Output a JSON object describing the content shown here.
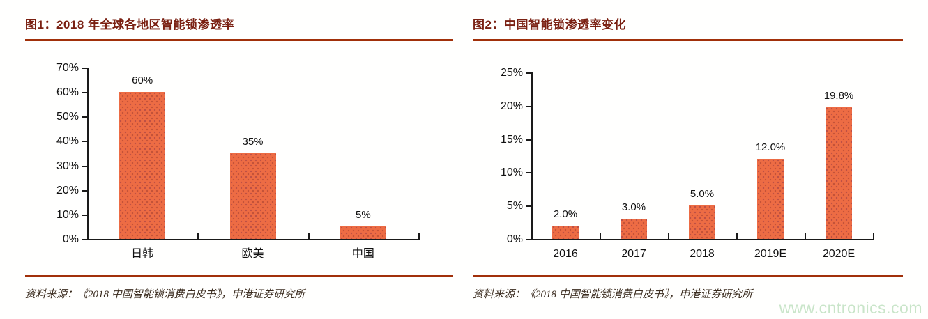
{
  "figures": [
    {
      "source": "资料来源：《2018 中国智能锁消费白皮书》，申港证券研究所"
    },
    {
      "source": "资料来源：《2018 中国智能锁消费白皮书》，申港证券研究所"
    }
  ],
  "watermark": {
    "text": "www.cntronics.com",
    "color": "#c9e5c9"
  },
  "accent_colors": {
    "title": "#7a2012",
    "rule": "#a1300a",
    "bar": "#ed6c44"
  },
  "chart_data": [
    {
      "type": "bar",
      "title": "图1：2018 年全球各地区智能锁渗透率",
      "categories": [
        "日韩",
        "欧美",
        "中国"
      ],
      "values": [
        60,
        35,
        5
      ],
      "data_labels": [
        "60%",
        "35%",
        "5%"
      ],
      "xlabel": "",
      "ylabel": "",
      "ylim": [
        0,
        70
      ],
      "ytick_step": 10,
      "ytick_labels": [
        "0%",
        "10%",
        "20%",
        "30%",
        "40%",
        "50%",
        "60%",
        "70%"
      ],
      "bar_color": "#ed6c44",
      "grid": false,
      "legend": false
    },
    {
      "type": "bar",
      "title": "图2：中国智能锁渗透率变化",
      "categories": [
        "2016",
        "2017",
        "2018",
        "2019E",
        "2020E"
      ],
      "values": [
        2.0,
        3.0,
        5.0,
        12.0,
        19.8
      ],
      "data_labels": [
        "2.0%",
        "3.0%",
        "5.0%",
        "12.0%",
        "19.8%"
      ],
      "xlabel": "",
      "ylabel": "",
      "ylim": [
        0,
        25
      ],
      "ytick_step": 5,
      "ytick_labels": [
        "0%",
        "5%",
        "10%",
        "15%",
        "20%",
        "25%"
      ],
      "bar_color": "#ed6c44",
      "grid": false,
      "legend": false
    }
  ]
}
